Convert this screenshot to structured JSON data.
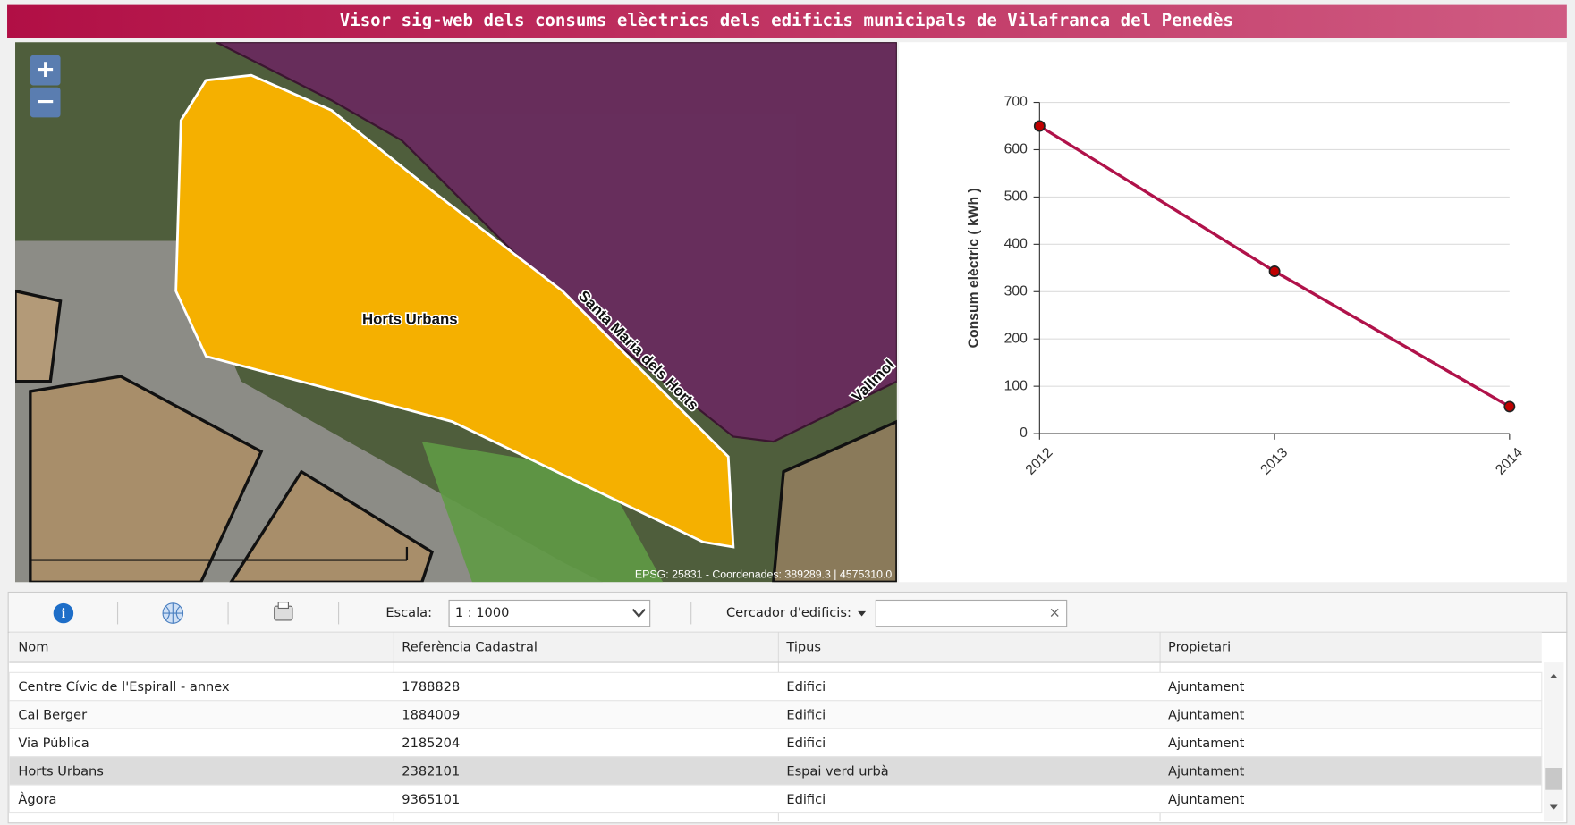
{
  "header": {
    "title": "Visor sig-web dels consums elèctrics dels edificis municipals de Vilafranca del Penedès"
  },
  "map": {
    "zoom_in": "+",
    "zoom_out": "−",
    "area_label": "Horts Urbans",
    "street_labels": [
      "Santa Maria dels Horts",
      "Vallmol"
    ],
    "attribution": "EPSG: 25831 - Coordenades: 389289.3 | 4575310.0"
  },
  "chart_data": {
    "type": "line",
    "y_label": "Consum elèctric ( kWh )",
    "categories": [
      "2012",
      "2013",
      "2014"
    ],
    "values": [
      650,
      343,
      57
    ],
    "color": "#b0124a",
    "marker_color": "#c00000",
    "ylim": [
      0,
      700
    ],
    "yticks": [
      0,
      100,
      200,
      300,
      400,
      500,
      600,
      700
    ],
    "grid": true
  },
  "toolbar": {
    "scale_label": "Escala:",
    "scale_value": "1 : 1000",
    "search_label": "Cercador d'edificis:"
  },
  "table": {
    "columns": [
      "Nom",
      "Referència Cadastral",
      "Tipus",
      "Propietari"
    ],
    "rows": [
      [
        "Centre Cívic de l'Espirall - annex",
        "1788828",
        "Edifici",
        "Ajuntament"
      ],
      [
        "Cal Berger",
        "1884009",
        "Edifici",
        "Ajuntament"
      ],
      [
        "Via Pública",
        "2185204",
        "Edifici",
        "Ajuntament"
      ],
      [
        "Horts Urbans",
        "2382101",
        "Espai verd urbà",
        "Ajuntament"
      ],
      [
        "Àgora",
        "9365101",
        "Edifici",
        "Ajuntament"
      ]
    ],
    "selected_row": 3
  }
}
